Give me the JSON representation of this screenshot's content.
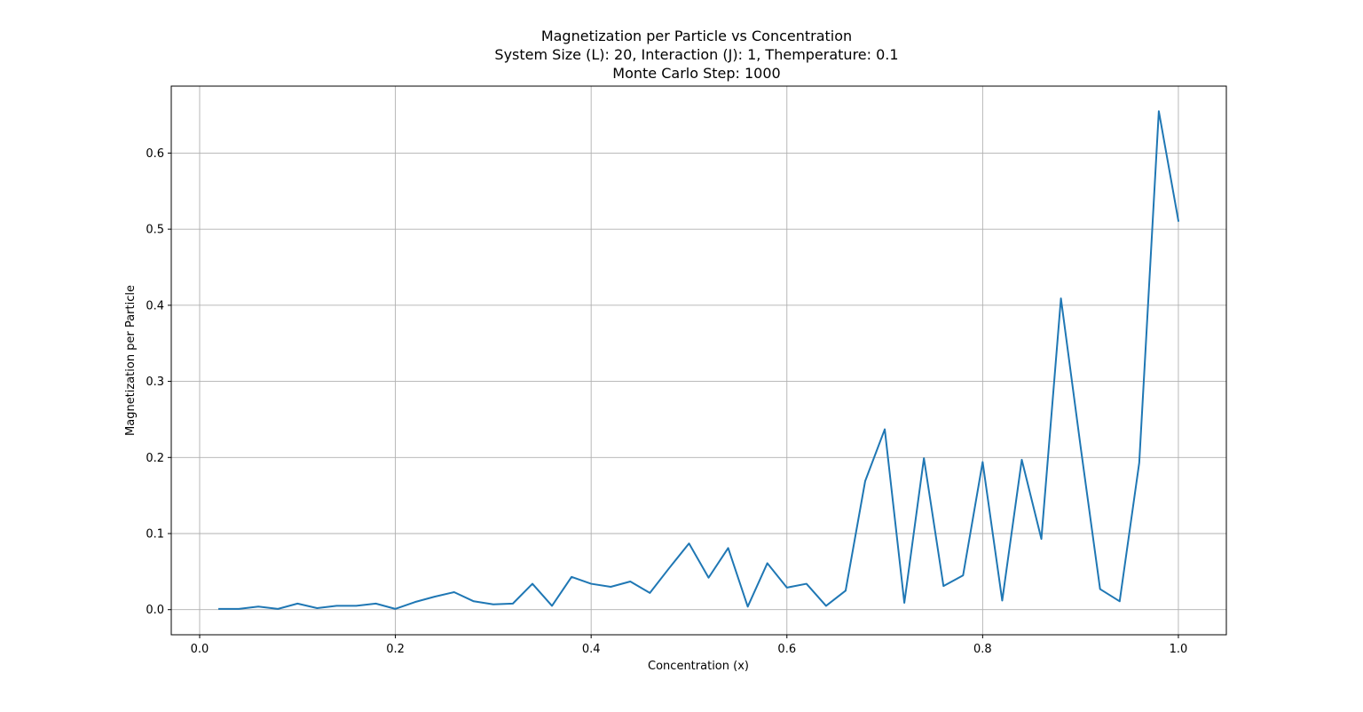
{
  "chart_data": {
    "type": "line",
    "title_lines": [
      "Magnetization per Particle vs Concentration",
      "System Size (L): 20, Interaction (J): 1, Themperature: 0.1",
      "Monte Carlo Step: 1000"
    ],
    "xlabel": "Concentration (x)",
    "ylabel": "Magnetization per Particle",
    "xlim": [
      -0.029,
      1.049
    ],
    "ylim": [
      -0.033,
      0.688
    ],
    "x_ticks": [
      "0.0",
      "0.2",
      "0.4",
      "0.6",
      "0.8",
      "1.0"
    ],
    "x_tick_values": [
      0.0,
      0.2,
      0.4,
      0.6,
      0.8,
      1.0
    ],
    "y_ticks": [
      "0.0",
      "0.1",
      "0.2",
      "0.3",
      "0.4",
      "0.5",
      "0.6"
    ],
    "y_tick_values": [
      0.0,
      0.1,
      0.2,
      0.3,
      0.4,
      0.5,
      0.6
    ],
    "grid": true,
    "series": [
      {
        "name": "magnetization",
        "color": "#1f77b4",
        "x": [
          0.02,
          0.04,
          0.06,
          0.08,
          0.1,
          0.12,
          0.14,
          0.16,
          0.18,
          0.2,
          0.22,
          0.24,
          0.26,
          0.28,
          0.3,
          0.32,
          0.34,
          0.36,
          0.38,
          0.4,
          0.42,
          0.44,
          0.46,
          0.48,
          0.5,
          0.52,
          0.54,
          0.56,
          0.58,
          0.6,
          0.62,
          0.64,
          0.66,
          0.68,
          0.7,
          0.72,
          0.74,
          0.76,
          0.78,
          0.8,
          0.82,
          0.84,
          0.86,
          0.88,
          0.9,
          0.92,
          0.94,
          0.96,
          0.98,
          1.0
        ],
        "y": [
          0.001,
          0.001,
          0.004,
          0.001,
          0.008,
          0.002,
          0.005,
          0.005,
          0.008,
          0.001,
          0.01,
          0.017,
          0.023,
          0.011,
          0.007,
          0.008,
          0.034,
          0.005,
          0.043,
          0.034,
          0.03,
          0.037,
          0.022,
          0.055,
          0.087,
          0.042,
          0.081,
          0.004,
          0.061,
          0.029,
          0.034,
          0.005,
          0.025,
          0.169,
          0.237,
          0.009,
          0.199,
          0.031,
          0.045,
          0.194,
          0.012,
          0.197,
          0.093,
          0.409,
          0.215,
          0.027,
          0.011,
          0.193,
          0.655,
          0.511
        ]
      }
    ]
  }
}
